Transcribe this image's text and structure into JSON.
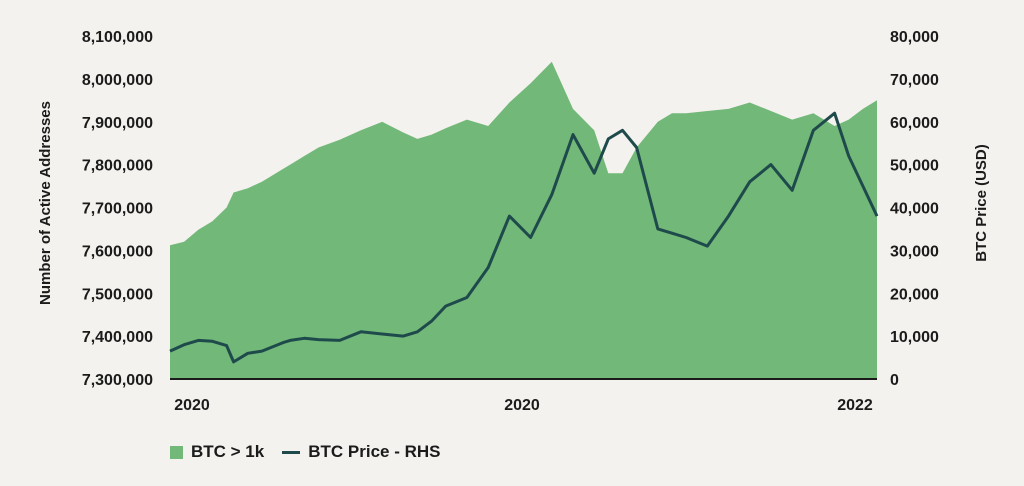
{
  "colors": {
    "area": "#72b879",
    "line": "#1f4a4c",
    "axis": "#1b1b1b",
    "background": "#f4f2ee"
  },
  "chart_data": {
    "type": "area",
    "title": "",
    "xlabel": "",
    "ylabel": "Number of Active Addresses",
    "y2label": "BTC Price (USD)",
    "xtick_labels": [
      "2020",
      "2020",
      "2022"
    ],
    "ylim": [
      7300000,
      8100000
    ],
    "yticks": [
      7300000,
      7400000,
      7500000,
      7600000,
      7700000,
      7800000,
      7900000,
      8000000,
      8100000
    ],
    "ytick_labels": [
      "7,300,000",
      "7,400,000",
      "7,500,000",
      "7,600,000",
      "7,700,000",
      "7,800,000",
      "7,900,000",
      "8,000,000",
      "8,100,000"
    ],
    "y2lim": [
      0,
      80000
    ],
    "y2ticks": [
      0,
      10000,
      20000,
      30000,
      40000,
      50000,
      60000,
      70000,
      80000
    ],
    "y2tick_labels": [
      "0",
      "10,000",
      "20,000",
      "30,000",
      "40,000",
      "50,000",
      "60,000",
      "70,000",
      "80,000"
    ],
    "legend_position": "bottom-left",
    "x": [
      0,
      2,
      4,
      6,
      8,
      9,
      11,
      13,
      16,
      17,
      19,
      21,
      24,
      27,
      30,
      33,
      35,
      37,
      39,
      42,
      45,
      48,
      51,
      54,
      57,
      60,
      62,
      64,
      66,
      69,
      71,
      73,
      76,
      79,
      82,
      85,
      88,
      91,
      94,
      96,
      98,
      100
    ],
    "series": [
      {
        "name": "BTC > 1k",
        "axis": "left",
        "values": [
          7612000,
          7620000,
          7648000,
          7668000,
          7700000,
          7735000,
          7745000,
          7760000,
          7790000,
          7800000,
          7820000,
          7840000,
          7858000,
          7880000,
          7900000,
          7875000,
          7860000,
          7870000,
          7885000,
          7905000,
          7890000,
          7945000,
          7990000,
          8040000,
          7930000,
          7880000,
          7780000,
          7780000,
          7840000,
          7900000,
          7920000,
          7920000,
          7925000,
          7930000,
          7945000,
          7925000,
          7905000,
          7920000,
          7890000,
          7905000,
          7930000,
          7950000
        ]
      },
      {
        "name": "BTC Price - RHS",
        "axis": "right",
        "values": [
          6500,
          8000,
          9000,
          8800,
          7800,
          4000,
          6000,
          6500,
          8500,
          9000,
          9500,
          9200,
          9000,
          11000,
          10500,
          10000,
          11000,
          13500,
          17000,
          19000,
          26000,
          38000,
          33000,
          43000,
          57000,
          48000,
          56000,
          58000,
          54000,
          35000,
          34000,
          33000,
          31000,
          38000,
          46000,
          50000,
          44000,
          58000,
          62000,
          52000,
          45000,
          38000
        ]
      }
    ]
  },
  "legend": {
    "area_label": "BTC > 1k",
    "line_label": "BTC Price - RHS"
  }
}
